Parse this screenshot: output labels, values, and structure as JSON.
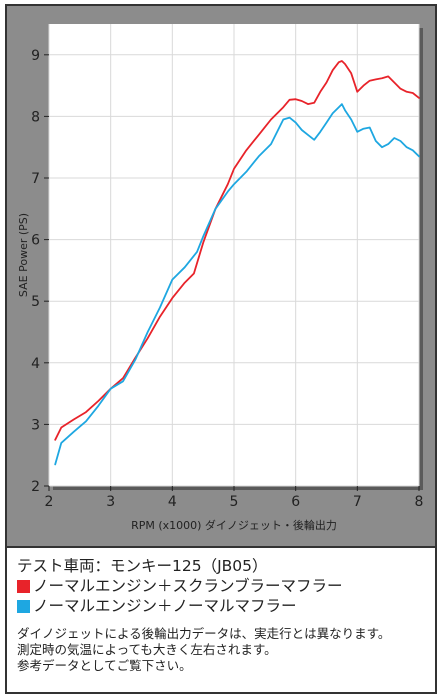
{
  "chart_data": {
    "type": "line",
    "xlabel": "RPM (x1000) ダイノジェット・後輪出力",
    "ylabel": "SAE Power (PS)",
    "xlim": [
      2,
      8
    ],
    "ylim": [
      2,
      9.5
    ],
    "xticks": [
      "2",
      "3",
      "4",
      "5",
      "6",
      "7",
      "8"
    ],
    "yticks": [
      "2",
      "3",
      "4",
      "5",
      "6",
      "7",
      "8",
      "9"
    ],
    "grid": true,
    "series": [
      {
        "name": "ノーマルエンジン＋スクランブラーマフラー",
        "color": "#e8232a",
        "x": [
          2.1,
          2.2,
          2.4,
          2.6,
          2.8,
          3.0,
          3.2,
          3.4,
          3.6,
          3.8,
          4.0,
          4.2,
          4.35,
          4.5,
          4.7,
          4.9,
          5.0,
          5.2,
          5.4,
          5.6,
          5.8,
          5.9,
          6.0,
          6.1,
          6.2,
          6.3,
          6.4,
          6.5,
          6.6,
          6.7,
          6.75,
          6.8,
          6.9,
          7.0,
          7.1,
          7.2,
          7.3,
          7.4,
          7.5,
          7.6,
          7.7,
          7.8,
          7.9,
          8.0
        ],
        "y": [
          2.75,
          2.95,
          3.08,
          3.2,
          3.38,
          3.58,
          3.75,
          4.08,
          4.4,
          4.75,
          5.05,
          5.3,
          5.45,
          5.95,
          6.5,
          6.9,
          7.15,
          7.45,
          7.7,
          7.95,
          8.15,
          8.27,
          8.28,
          8.25,
          8.2,
          8.22,
          8.4,
          8.55,
          8.75,
          8.88,
          8.9,
          8.85,
          8.7,
          8.4,
          8.5,
          8.58,
          8.6,
          8.62,
          8.65,
          8.55,
          8.45,
          8.4,
          8.38,
          8.3
        ]
      },
      {
        "name": "ノーマルエンジン＋ノーマルマフラー",
        "color": "#1ea7e1",
        "x": [
          2.1,
          2.2,
          2.4,
          2.6,
          2.8,
          3.0,
          3.2,
          3.4,
          3.6,
          3.8,
          4.0,
          4.2,
          4.4,
          4.5,
          4.7,
          4.9,
          5.0,
          5.2,
          5.4,
          5.6,
          5.8,
          5.9,
          6.0,
          6.1,
          6.2,
          6.3,
          6.4,
          6.5,
          6.6,
          6.7,
          6.75,
          6.8,
          6.9,
          7.0,
          7.1,
          7.2,
          7.3,
          7.4,
          7.5,
          7.6,
          7.7,
          7.8,
          7.9,
          8.0
        ],
        "y": [
          2.35,
          2.7,
          2.88,
          3.05,
          3.3,
          3.58,
          3.7,
          4.05,
          4.5,
          4.9,
          5.35,
          5.55,
          5.8,
          6.05,
          6.5,
          6.78,
          6.9,
          7.1,
          7.35,
          7.55,
          7.95,
          7.98,
          7.9,
          7.78,
          7.7,
          7.62,
          7.75,
          7.9,
          8.05,
          8.15,
          8.2,
          8.1,
          7.95,
          7.75,
          7.8,
          7.82,
          7.6,
          7.5,
          7.55,
          7.65,
          7.6,
          7.5,
          7.45,
          7.35
        ]
      }
    ]
  },
  "caption": {
    "vehicle": "テスト車両：モンキー125（JB05）",
    "note_lines": [
      "ダイノジェットによる後輪出力データは、実走行とは異なります。",
      "測定時の気温によっても大きく左右されます。",
      "参考データとしてご覧下さい。"
    ]
  }
}
